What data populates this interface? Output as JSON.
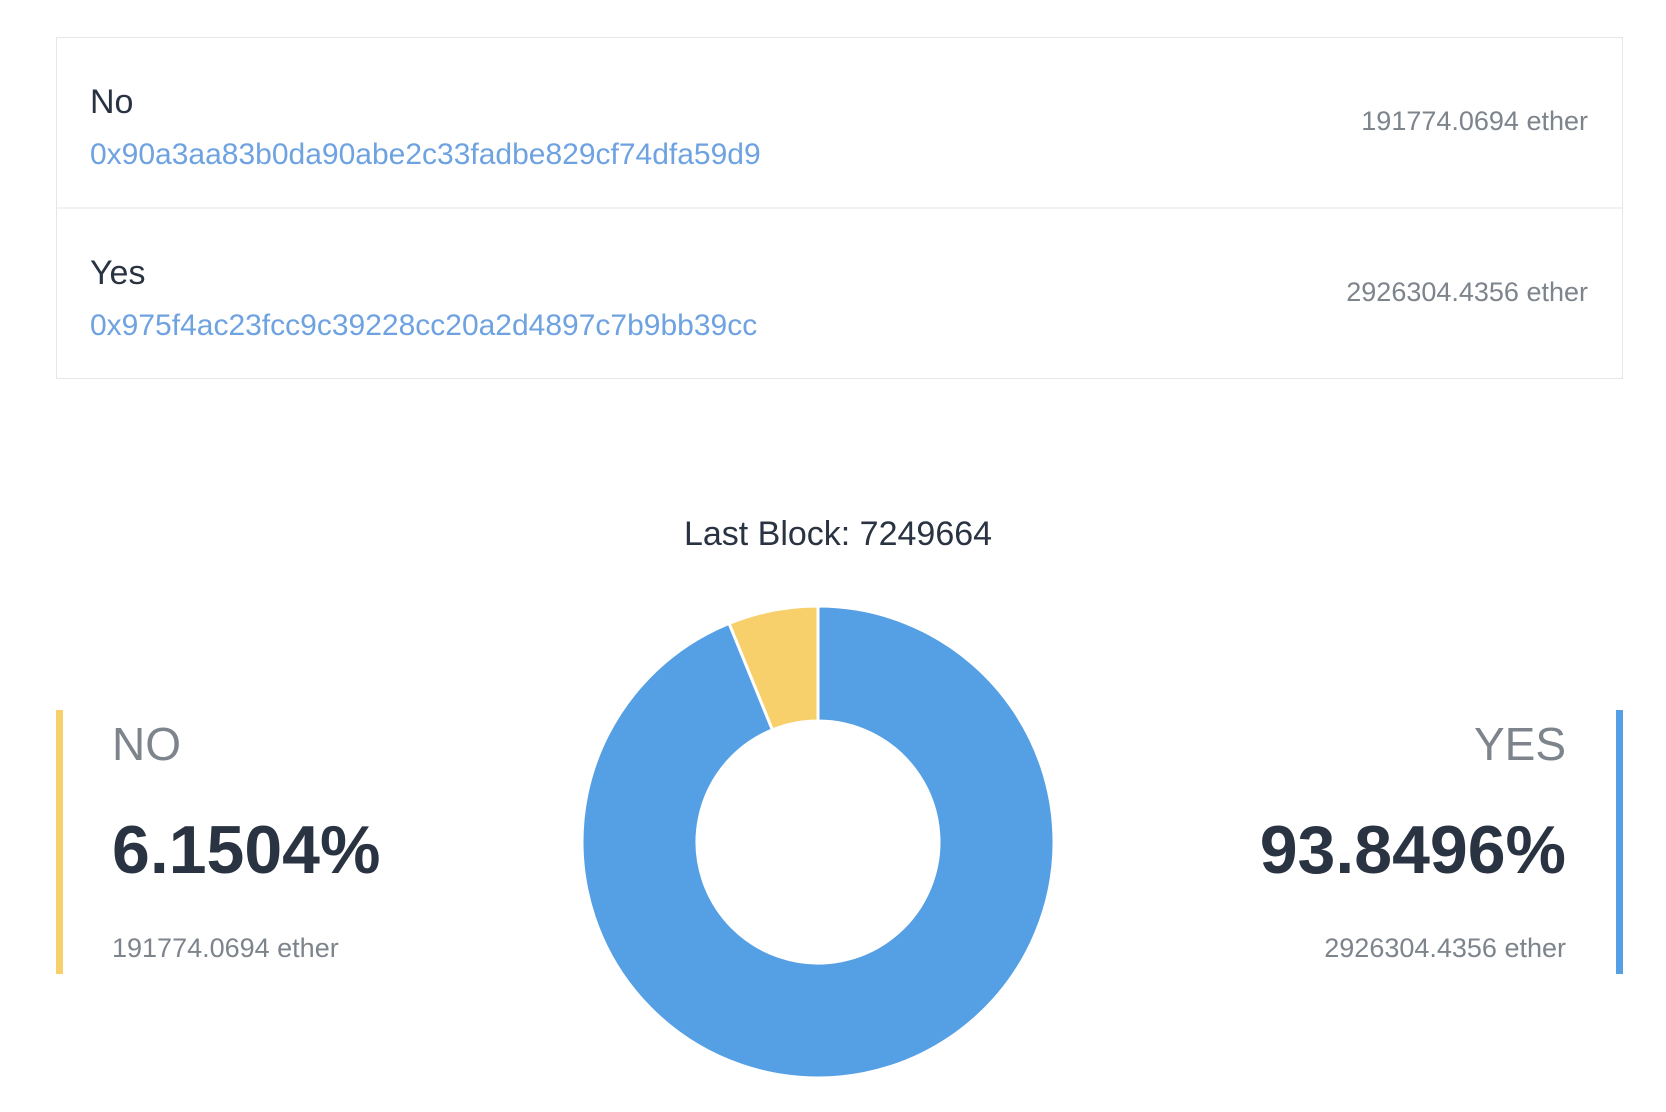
{
  "options": [
    {
      "name": "No",
      "address": "0x90a3aa83b0da90abe2c33fadbe829cf74dfa59d9",
      "amount": "191774.0694 ether"
    },
    {
      "name": "Yes",
      "address": "0x975f4ac23fcc9c39228cc20a2d4897c7b9bb39cc",
      "amount": "2926304.4356 ether"
    }
  ],
  "chart_data": {
    "type": "pie",
    "donut": true,
    "title": "Last Block: 7249664",
    "categories": [
      "NO",
      "YES"
    ],
    "values": [
      6.1504,
      93.8496
    ],
    "value_labels": [
      "6.1504%",
      "93.8496%"
    ],
    "amounts": [
      "191774.0694 ether",
      "2926304.4356 ether"
    ],
    "colors": [
      "#f7cf6b",
      "#55a0e4"
    ]
  }
}
